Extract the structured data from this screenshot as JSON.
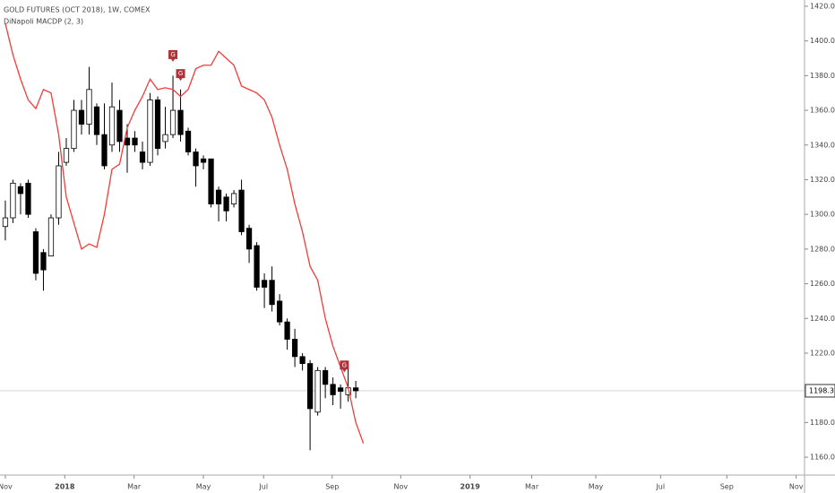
{
  "chart_data": {
    "type": "candlestick",
    "title": "GOLD FUTURES (OCT 2018), 1W, COMEX",
    "subtitle": "DiNapoli MACDP (2, 3)",
    "open": [
      1293,
      1298,
      1316,
      1318,
      1290,
      1278,
      1276,
      1298,
      1330,
      1338,
      1360,
      1352,
      1362,
      1346,
      1340,
      1360,
      1344,
      1344,
      1336,
      1330,
      1366,
      1342,
      1346,
      1360,
      1348,
      1336,
      1332,
      1332,
      1314,
      1310,
      1306,
      1314,
      1292,
      1282,
      1262,
      1262,
      1250,
      1238,
      1228,
      1218,
      1214,
      1186,
      1210,
      1202,
      1200,
      1196,
      1200
    ],
    "high": [
      1308,
      1320,
      1318,
      1320,
      1292,
      1280,
      1300,
      1336,
      1344,
      1366,
      1366,
      1385,
      1364,
      1364,
      1376,
      1366,
      1352,
      1348,
      1342,
      1370,
      1368,
      1362,
      1380,
      1372,
      1350,
      1338,
      1334,
      1332,
      1316,
      1312,
      1314,
      1320,
      1294,
      1284,
      1266,
      1270,
      1254,
      1240,
      1234,
      1220,
      1216,
      1212,
      1212,
      1206,
      1202,
      1212,
      1204
    ],
    "low": [
      1285,
      1295,
      1300,
      1298,
      1262,
      1256,
      1276,
      1294,
      1328,
      1336,
      1346,
      1346,
      1340,
      1326,
      1336,
      1336,
      1324,
      1336,
      1326,
      1328,
      1334,
      1338,
      1344,
      1342,
      1334,
      1316,
      1326,
      1304,
      1296,
      1296,
      1304,
      1288,
      1272,
      1256,
      1246,
      1244,
      1236,
      1222,
      1212,
      1210,
      1164,
      1184,
      1194,
      1190,
      1188,
      1192,
      1194
    ],
    "close": [
      1298,
      1318,
      1312,
      1300,
      1266,
      1268,
      1298,
      1328,
      1338,
      1360,
      1352,
      1372,
      1346,
      1328,
      1362,
      1342,
      1340,
      1340,
      1330,
      1366,
      1338,
      1346,
      1360,
      1346,
      1336,
      1328,
      1330,
      1306,
      1306,
      1302,
      1312,
      1290,
      1280,
      1258,
      1258,
      1248,
      1238,
      1228,
      1218,
      1214,
      1188,
      1210,
      1202,
      1196,
      1198,
      1200,
      1198.3
    ],
    "up_color": "#ffffff",
    "down_color": "#000000",
    "series": [
      {
        "name": "DiNapoli MACDP (2, 3)",
        "color": "#f23b3b",
        "values": [
          1410,
          1392,
          1378,
          1366,
          1361,
          1372,
          1370,
          1346,
          1310,
          1295,
          1280,
          1283,
          1281,
          1300,
          1326,
          1329,
          1350,
          1360,
          1368,
          1378,
          1372,
          1373,
          1372,
          1368,
          1372,
          1384,
          1386,
          1386,
          1394,
          1390,
          1386,
          1374,
          1372,
          1370,
          1366,
          1356,
          1340,
          1326,
          1306,
          1290,
          1270,
          1262,
          1240,
          1224,
          1212,
          1200,
          1180,
          1168
        ]
      }
    ],
    "signals": [
      {
        "label": "G",
        "x": 22,
        "y": 1388
      },
      {
        "label": "G",
        "x": 23,
        "y": 1377
      },
      {
        "label": "G",
        "x": 44.5,
        "y": 1209
      }
    ],
    "last_price": {
      "value": 1198.3,
      "label": "1198.3"
    },
    "xlim": [
      -0.7,
      104.9
    ],
    "xticks": [
      {
        "value": 0,
        "label": "Nov"
      },
      {
        "value": 7.8,
        "label": "2018"
      },
      {
        "value": 16.9,
        "label": "Mar"
      },
      {
        "value": 26,
        "label": "May"
      },
      {
        "value": 33.9,
        "label": "Jul"
      },
      {
        "value": 42.9,
        "label": "Sep"
      },
      {
        "value": 51.9,
        "label": "Nov"
      },
      {
        "value": 61,
        "label": "2019"
      },
      {
        "value": 69.1,
        "label": "Mar"
      },
      {
        "value": 77.5,
        "label": "May"
      },
      {
        "value": 86,
        "label": "Jul"
      },
      {
        "value": 94.7,
        "label": "Sep"
      },
      {
        "value": 103.8,
        "label": "Nov"
      }
    ],
    "ylim": [
      1149.7,
      1423.6
    ],
    "yticks": [
      {
        "value": 1160,
        "label": "1160.0"
      },
      {
        "value": 1180,
        "label": "1180.0"
      },
      {
        "value": 1200,
        "label": "1200.0"
      },
      {
        "value": 1220,
        "label": "1220.0"
      },
      {
        "value": 1240,
        "label": "1240.0"
      },
      {
        "value": 1260,
        "label": "1260.0"
      },
      {
        "value": 1280,
        "label": "1280.0"
      },
      {
        "value": 1300,
        "label": "1300.0"
      },
      {
        "value": 1320,
        "label": "1320.0"
      },
      {
        "value": 1340,
        "label": "1340.0"
      },
      {
        "value": 1360,
        "label": "1360.0"
      },
      {
        "value": 1380,
        "label": "1380.0"
      },
      {
        "value": 1400,
        "label": "1400.0"
      },
      {
        "value": 1420,
        "label": "1420.0"
      }
    ]
  }
}
